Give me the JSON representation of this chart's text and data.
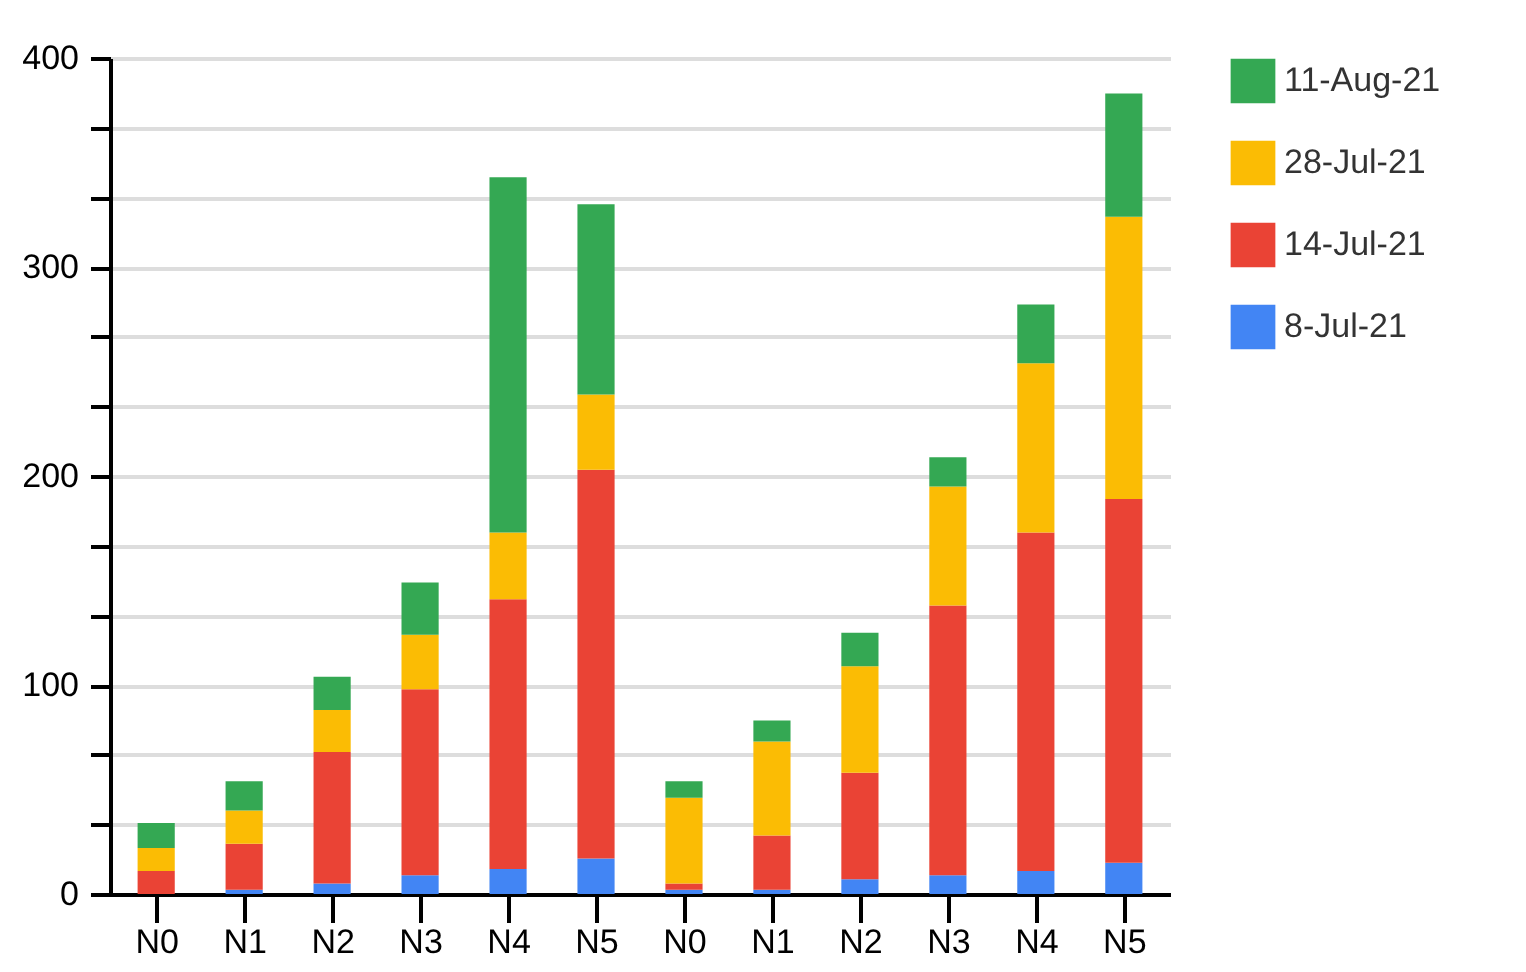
{
  "chart_data": {
    "type": "bar",
    "stacked": true,
    "categories": [
      "N0",
      "N1",
      "N2",
      "N3",
      "N4",
      "N5",
      "N0",
      "N1",
      "N2",
      "N3",
      "N4",
      "N5"
    ],
    "series": [
      {
        "name": "8-Jul-21",
        "color": "#4285f4",
        "values": [
          0,
          2,
          5,
          9,
          12,
          17,
          2,
          2,
          7,
          9,
          11,
          15
        ]
      },
      {
        "name": "14-Jul-21",
        "color": "#ea4335",
        "values": [
          11,
          22,
          63,
          89,
          129,
          186,
          3,
          26,
          51,
          129,
          162,
          174
        ]
      },
      {
        "name": "28-Jul-21",
        "color": "#fbbc04",
        "values": [
          11,
          16,
          20,
          26,
          32,
          36,
          41,
          45,
          51,
          57,
          81,
          135
        ]
      },
      {
        "name": "11-Aug-21",
        "color": "#34a853",
        "values": [
          12,
          14,
          16,
          25,
          170,
          91,
          8,
          10,
          16,
          14,
          28,
          59
        ]
      }
    ],
    "ylim": [
      0,
      400
    ],
    "yticks": [
      0,
      {
        "value": 33.3,
        "label": null
      },
      {
        "value": 66.7,
        "label": null
      },
      100,
      {
        "value": 133.3,
        "label": null
      },
      {
        "value": 166.7,
        "label": null
      },
      200,
      {
        "value": 233.3,
        "label": null
      },
      {
        "value": 266.7,
        "label": null
      },
      300,
      {
        "value": 333.3,
        "label": null
      },
      {
        "value": 366.7,
        "label": null
      },
      400
    ],
    "grid": true,
    "legend": "top right"
  }
}
